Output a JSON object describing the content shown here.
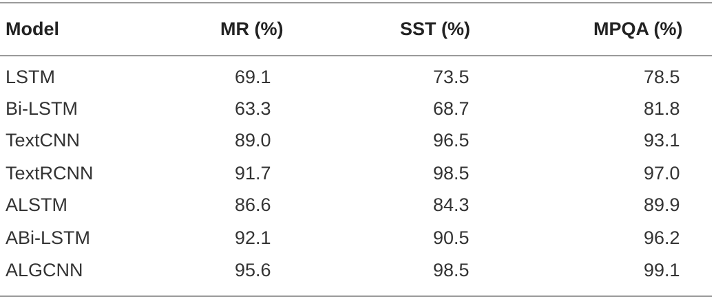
{
  "table": {
    "headers": {
      "model": "Model",
      "mr": "MR (%)",
      "sst": "SST (%)",
      "mpqa": "MPQA (%)"
    },
    "rows": [
      {
        "model": "LSTM",
        "mr": "69.1",
        "sst": "73.5",
        "mpqa": "78.5"
      },
      {
        "model": "Bi-LSTM",
        "mr": "63.3",
        "sst": "68.7",
        "mpqa": "81.8"
      },
      {
        "model": "TextCNN",
        "mr": "89.0",
        "sst": "96.5",
        "mpqa": "93.1"
      },
      {
        "model": "TextRCNN",
        "mr": "91.7",
        "sst": "98.5",
        "mpqa": "97.0"
      },
      {
        "model": "ALSTM",
        "mr": "86.6",
        "sst": "84.3",
        "mpqa": "89.9"
      },
      {
        "model": "ABi-LSTM",
        "mr": "92.1",
        "sst": "90.5",
        "mpqa": "96.2"
      },
      {
        "model": "ALGCNN",
        "mr": "95.6",
        "sst": "98.5",
        "mpqa": "99.1"
      }
    ]
  }
}
